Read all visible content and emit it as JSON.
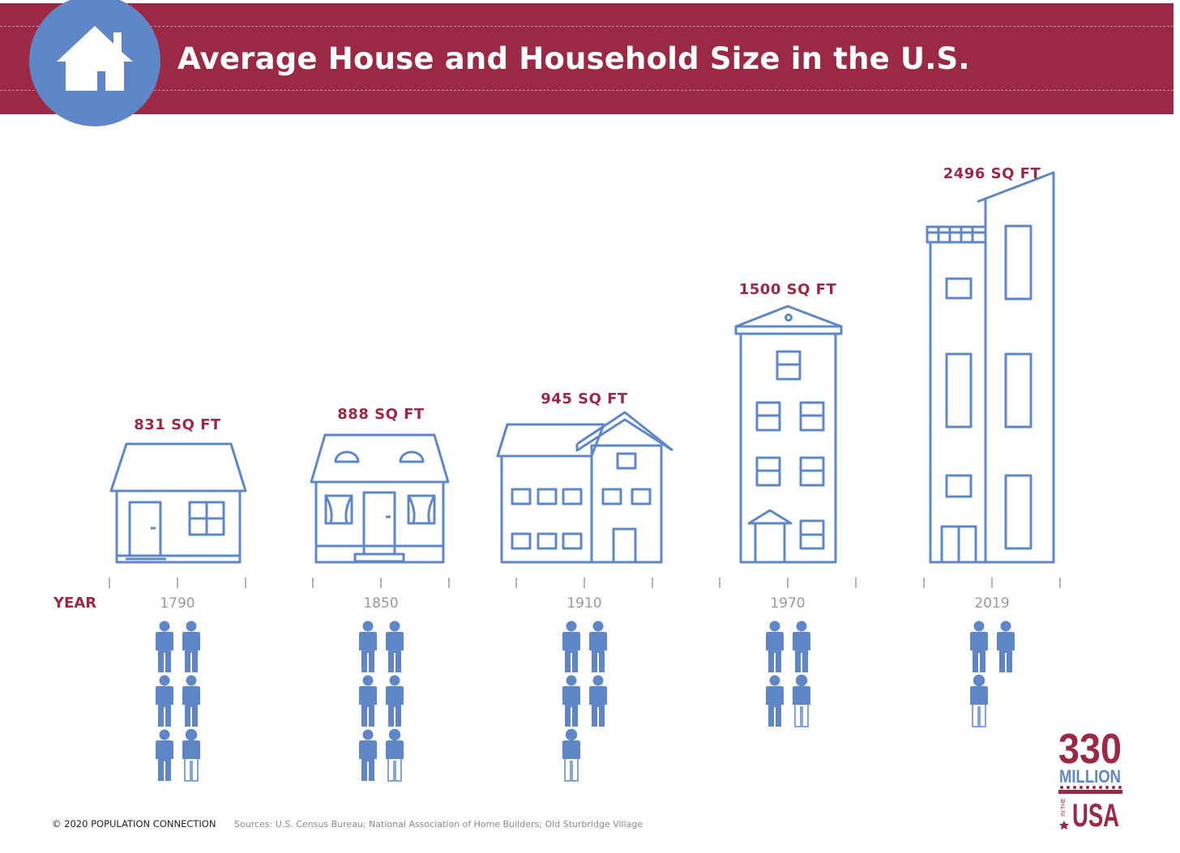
{
  "header": {
    "title": "Average House and Household Size in the U.S.",
    "badge_icon": "house-icon"
  },
  "colors": {
    "banner": "#9c2943",
    "accent_blue": "#5f87c8",
    "label_red": "#9c2943",
    "tick_gray": "#9a9a9a"
  },
  "chart_data": {
    "type": "pictograph",
    "title": "Average House and Household Size in the U.S.",
    "x_axis_label": "YEAR",
    "categories": [
      "1790",
      "1850",
      "1910",
      "1970",
      "2019"
    ],
    "series": [
      {
        "values": [
          831,
          888,
          945,
          1500,
          2496
        ],
        "labels": [
          "831 SQ FT",
          "888 SQ FT",
          "945 SQ FT",
          "1500 SQ FT",
          "2496 SQ FT"
        ]
      },
      {
        "values": [
          5.5,
          5.5,
          4.5,
          3.5,
          2.5
        ]
      }
    ]
  },
  "footer": {
    "copyright": "© 2020 POPULATION CONNECTION",
    "sources": "Sources: U.S. Census Bureau; National Association of Home Builders; Old Sturbridge Village"
  },
  "logo": {
    "number": "330",
    "word": "MILLION",
    "small": "IN THE",
    "country": "USA"
  }
}
